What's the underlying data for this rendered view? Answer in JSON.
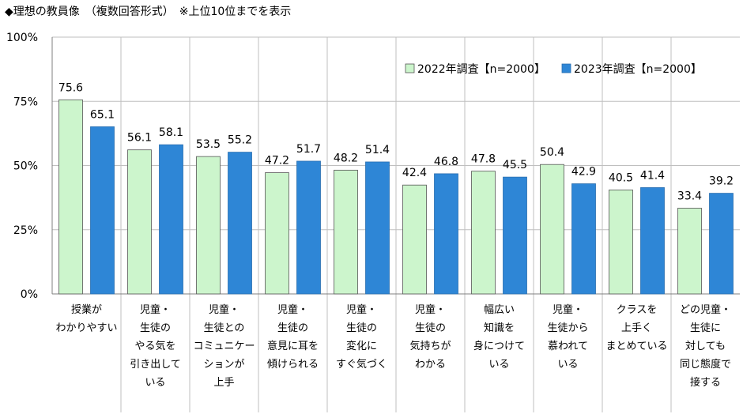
{
  "title": "◆理想の教員像　（複数回答形式）　※上位10位までを表示",
  "colors": {
    "s2022": "#ccf5cc",
    "s2023": "#2e86d6",
    "grid": "#bfbfbf",
    "axis": "#7f7f7f"
  },
  "chart_data": {
    "type": "bar",
    "title": "◆理想の教員像　（複数回答形式）　※上位10位までを表示",
    "ylim": [
      0,
      100
    ],
    "yticks": [
      "0%",
      "25%",
      "50%",
      "75%",
      "100%"
    ],
    "legend_position": "top-right",
    "categories": [
      [
        "授業が",
        "わかりやすい"
      ],
      [
        "児童・",
        "生徒の",
        "やる気を",
        "引き出して",
        "いる"
      ],
      [
        "児童・",
        "生徒との",
        "コミュニケー",
        "ションが",
        "上手"
      ],
      [
        "児童・",
        "生徒の",
        "意見に耳を",
        "傾けられる"
      ],
      [
        "児童・",
        "生徒の",
        "変化に",
        "すぐ気づく"
      ],
      [
        "児童・",
        "生徒の",
        "気持ちが",
        "わかる"
      ],
      [
        "幅広い",
        "知識を",
        "身につけて",
        "いる"
      ],
      [
        "児童・",
        "生徒から",
        "慕われて",
        "いる"
      ],
      [
        "クラスを",
        "上手く",
        "まとめている"
      ],
      [
        "どの児童・",
        "生徒に",
        "対しても",
        "同じ態度で",
        "接する"
      ]
    ],
    "series": [
      {
        "name": "2022年調査【n=2000】",
        "values": [
          75.6,
          56.1,
          53.5,
          47.2,
          48.2,
          42.4,
          47.8,
          50.4,
          40.5,
          33.4
        ]
      },
      {
        "name": "2023年調査【n=2000】",
        "values": [
          65.1,
          58.1,
          55.2,
          51.7,
          51.4,
          46.8,
          45.5,
          42.9,
          41.4,
          39.2
        ]
      }
    ]
  }
}
